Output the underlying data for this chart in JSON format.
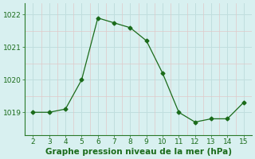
{
  "x": [
    2,
    3,
    4,
    5,
    6,
    7,
    8,
    9,
    10,
    11,
    12,
    13,
    14,
    15
  ],
  "y": [
    1019.0,
    1019.0,
    1019.1,
    1020.0,
    1021.9,
    1021.75,
    1021.6,
    1021.2,
    1020.2,
    1019.0,
    1018.7,
    1018.8,
    1018.8,
    1019.3
  ],
  "line_color": "#1a6b1a",
  "marker": "D",
  "marker_size": 2.5,
  "bg_color": "#d8f0f0",
  "major_grid_color": "#c0dede",
  "minor_grid_color": "#e0c8c8",
  "xlabel": "Graphe pression niveau de la mer (hPa)",
  "xlabel_color": "#1a6b1a",
  "xlabel_fontsize": 7.5,
  "ytick_labels": [
    "1019",
    "1020",
    "1021",
    "1022"
  ],
  "ytick_values": [
    1019,
    1020,
    1021,
    1022
  ],
  "xtick_values": [
    2,
    3,
    4,
    5,
    6,
    7,
    8,
    9,
    10,
    11,
    12,
    13,
    14,
    15
  ],
  "ylim": [
    1018.3,
    1022.35
  ],
  "xlim": [
    1.5,
    15.5
  ],
  "tick_fontsize": 6.5,
  "tick_color": "#1a6b1a"
}
